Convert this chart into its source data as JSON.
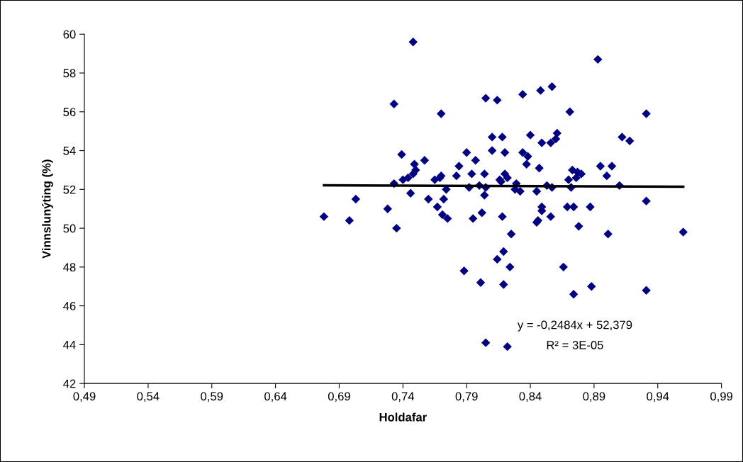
{
  "chart_data": {
    "type": "scatter",
    "xlabel": "Holdafar",
    "ylabel": "Vinnslunýting (%)",
    "xlim": [
      0.49,
      0.99
    ],
    "ylim": [
      42,
      60
    ],
    "xticks": [
      {
        "value": 0.49,
        "label": "0,49"
      },
      {
        "value": 0.54,
        "label": "0,54"
      },
      {
        "value": 0.59,
        "label": "0,59"
      },
      {
        "value": 0.64,
        "label": "0,64"
      },
      {
        "value": 0.69,
        "label": "0,69"
      },
      {
        "value": 0.74,
        "label": "0,74"
      },
      {
        "value": 0.79,
        "label": "0,79"
      },
      {
        "value": 0.84,
        "label": "0,84"
      },
      {
        "value": 0.89,
        "label": "0,89"
      },
      {
        "value": 0.94,
        "label": "0,94"
      },
      {
        "value": 0.99,
        "label": "0,99"
      }
    ],
    "yticks": [
      42,
      44,
      46,
      48,
      50,
      52,
      54,
      56,
      58,
      60
    ],
    "grid": false,
    "legend": false,
    "annotations": [
      "y = -0,2484x + 52,379",
      "R² = 3E-05"
    ],
    "series": [
      {
        "marker": "diamond",
        "color": "#000080",
        "x": [
          0.678,
          0.698,
          0.703,
          0.728,
          0.733,
          0.733,
          0.735,
          0.739,
          0.74,
          0.744,
          0.746,
          0.748,
          0.748,
          0.749,
          0.75,
          0.757,
          0.76,
          0.765,
          0.767,
          0.769,
          0.77,
          0.77,
          0.771,
          0.772,
          0.774,
          0.775,
          0.782,
          0.784,
          0.788,
          0.79,
          0.792,
          0.794,
          0.795,
          0.797,
          0.8,
          0.801,
          0.802,
          0.804,
          0.804,
          0.805,
          0.805,
          0.805,
          0.81,
          0.81,
          0.814,
          0.814,
          0.816,
          0.817,
          0.818,
          0.818,
          0.819,
          0.819,
          0.82,
          0.82,
          0.822,
          0.822,
          0.824,
          0.825,
          0.828,
          0.829,
          0.832,
          0.834,
          0.834,
          0.837,
          0.838,
          0.84,
          0.845,
          0.845,
          0.846,
          0.847,
          0.848,
          0.849,
          0.849,
          0.849,
          0.853,
          0.856,
          0.856,
          0.857,
          0.857,
          0.86,
          0.861,
          0.866,
          0.869,
          0.87,
          0.871,
          0.872,
          0.873,
          0.874,
          0.874,
          0.876,
          0.877,
          0.878,
          0.88,
          0.887,
          0.888,
          0.893,
          0.895,
          0.9,
          0.901,
          0.904,
          0.91,
          0.912,
          0.918,
          0.931,
          0.931,
          0.931,
          0.96
        ],
        "values": [
          50.6,
          50.4,
          51.5,
          51.0,
          56.4,
          52.3,
          50.0,
          53.8,
          52.5,
          52.6,
          51.8,
          59.6,
          52.8,
          53.3,
          53.0,
          53.5,
          51.5,
          52.5,
          51.1,
          52.6,
          55.9,
          52.7,
          50.7,
          51.5,
          52.0,
          50.5,
          52.7,
          53.2,
          47.8,
          53.9,
          52.1,
          52.8,
          50.5,
          53.5,
          52.2,
          47.2,
          50.8,
          52.8,
          51.7,
          56.7,
          52.1,
          44.1,
          54.7,
          54.0,
          56.6,
          48.4,
          52.5,
          52.4,
          54.7,
          50.6,
          48.8,
          47.1,
          53.9,
          52.8,
          52.6,
          43.9,
          48.0,
          49.7,
          52.0,
          52.3,
          51.9,
          56.9,
          53.9,
          53.3,
          53.7,
          54.8,
          51.9,
          50.3,
          50.4,
          53.1,
          57.1,
          54.4,
          51.1,
          50.9,
          52.2,
          50.6,
          54.4,
          57.3,
          52.1,
          54.6,
          54.9,
          48.0,
          51.1,
          52.5,
          56.0,
          52.1,
          53.0,
          46.6,
          51.1,
          52.6,
          52.9,
          50.1,
          52.8,
          51.1,
          47.0,
          58.7,
          53.2,
          52.7,
          49.7,
          53.2,
          52.2,
          54.7,
          54.5,
          55.9,
          51.4,
          46.8,
          49.8
        ]
      },
      {
        "type": "line",
        "marker": "none",
        "color": "#000000",
        "x": [
          0.678,
          0.96
        ],
        "values": [
          52.21,
          52.14
        ]
      }
    ]
  }
}
